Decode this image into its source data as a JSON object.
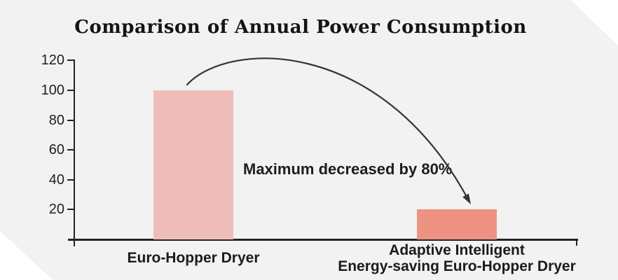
{
  "chart_data": {
    "type": "bar",
    "title": "Comparison of Annual Power Consumption",
    "categories": [
      "Euro-Hopper Dryer",
      "Adaptive Intelligent Energy-saving Euro-Hopper Dryer"
    ],
    "x_labels": [
      [
        "Euro-Hopper Dryer"
      ],
      [
        "Adaptive Intelligent",
        "Energy-saving Euro-Hopper Dryer"
      ]
    ],
    "values": [
      100,
      20
    ],
    "bar_colors": [
      "#eebdb9",
      "#ee9283"
    ],
    "yticks": [
      20,
      40,
      60,
      80,
      100,
      120
    ],
    "ylim": [
      0,
      120
    ],
    "xlabel": "",
    "ylabel": "",
    "annotation": "Maximum decreased by 80%",
    "legend": "none",
    "grid": false,
    "background_color": "#f2f2f2",
    "axis_color": "#23232b",
    "arrow_color": "#33333b",
    "text_color": "#1d1d1d"
  }
}
